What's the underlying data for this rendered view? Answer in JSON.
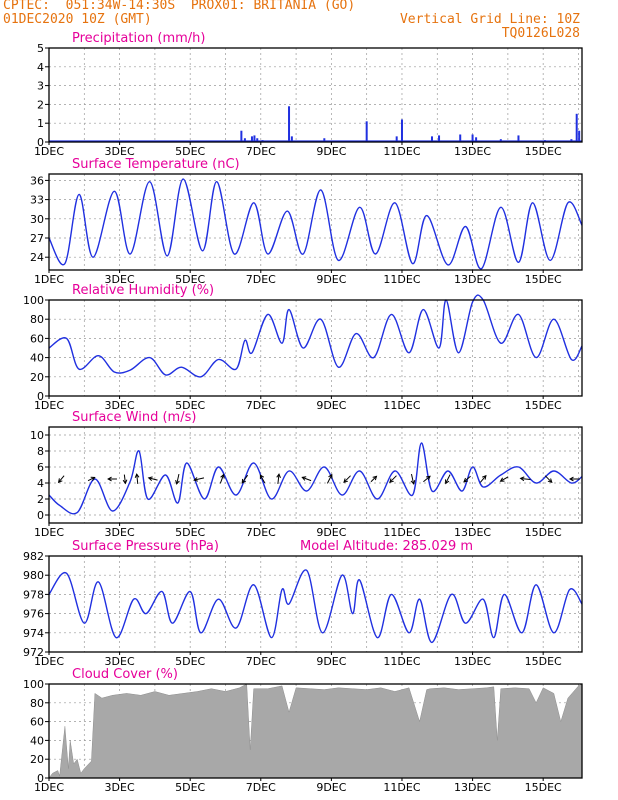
{
  "header": {
    "line1": "CPTEC:  051:34W-14:30S  PROX01: BRITANIA (GO)",
    "line2": "01DEC2020 10Z (GMT)",
    "grid_note": "Vertical Grid Line: 10Z",
    "code": "TQ0126L028"
  },
  "colors": {
    "accent": "#e6730f",
    "title": "#e6009a",
    "series": "#2030e0",
    "cloud": "#a8a8a8",
    "grid": "#9a9a9a"
  },
  "x_ticks": [
    "1DEC",
    "3DEC",
    "5DEC",
    "7DEC",
    "9DEC",
    "11DEC",
    "13DEC",
    "15DEC"
  ],
  "x_tick_days": [
    1,
    3,
    5,
    7,
    9,
    11,
    13,
    15
  ],
  "x_range_days": [
    1,
    16.1
  ],
  "chart_data": [
    {
      "type": "bar",
      "title": "Precipitation (mm/h)",
      "ylim": [
        0,
        5
      ],
      "yticks": [
        0,
        1,
        2,
        3,
        4,
        5
      ],
      "x_days": [
        6.45,
        6.55,
        6.75,
        6.82,
        6.9,
        7.05,
        7.8,
        7.88,
        8.8,
        10.0,
        10.85,
        11.0,
        11.85,
        12.05,
        12.65,
        13.0,
        13.1,
        13.8,
        14.3,
        15.05,
        15.8,
        15.95,
        16.02
      ],
      "values": [
        0.6,
        0.2,
        0.3,
        0.35,
        0.2,
        0.1,
        1.9,
        0.3,
        0.2,
        1.1,
        0.3,
        1.2,
        0.3,
        0.35,
        0.4,
        0.4,
        0.25,
        0.15,
        0.35,
        0.1,
        0.15,
        1.5,
        0.6
      ]
    },
    {
      "type": "line",
      "title": "Surface Temperature (nC)",
      "ylim": [
        22,
        37
      ],
      "yticks": [
        24,
        27,
        30,
        33,
        36
      ],
      "series": [
        {
          "x_days": [
            1.0,
            1.45,
            1.85,
            2.25,
            2.85,
            3.3,
            3.85,
            4.35,
            4.8,
            5.35,
            5.75,
            6.25,
            6.8,
            7.2,
            7.75,
            8.2,
            8.7,
            9.2,
            9.8,
            10.25,
            10.8,
            11.3,
            11.7,
            12.3,
            12.8,
            13.25,
            13.8,
            14.3,
            14.7,
            15.2,
            15.7,
            16.1
          ],
          "values": [
            27,
            23,
            33.8,
            24,
            34.3,
            24.5,
            35.8,
            24.2,
            36.2,
            25,
            35.8,
            24.5,
            32.5,
            24.5,
            31.2,
            24.5,
            34.5,
            23.5,
            31.8,
            24.5,
            32.5,
            23,
            30.5,
            22.8,
            28.8,
            22.2,
            31.8,
            23.2,
            32.5,
            23.5,
            32.5,
            29
          ]
        }
      ]
    },
    {
      "type": "line",
      "title": "Relative Humidity (%)",
      "ylim": [
        0,
        100
      ],
      "yticks": [
        0,
        20,
        40,
        60,
        80,
        100
      ],
      "series": [
        {
          "x_days": [
            1.0,
            1.5,
            1.85,
            2.4,
            2.85,
            3.3,
            3.85,
            4.3,
            4.75,
            5.3,
            5.8,
            6.3,
            6.55,
            6.75,
            7.2,
            7.6,
            7.8,
            8.2,
            8.7,
            9.2,
            9.7,
            10.2,
            10.7,
            11.2,
            11.6,
            12.05,
            12.25,
            12.6,
            13.0,
            13.3,
            13.8,
            14.3,
            14.8,
            15.3,
            15.8,
            16.1
          ],
          "values": [
            50,
            60,
            28,
            42,
            25,
            27,
            40,
            22,
            30,
            20,
            38,
            28,
            58,
            45,
            85,
            55,
            90,
            50,
            80,
            30,
            65,
            40,
            85,
            45,
            90,
            50,
            100,
            45,
            98,
            100,
            55,
            85,
            40,
            80,
            38,
            52
          ]
        }
      ]
    },
    {
      "type": "line",
      "title": "Surface Wind (m/s)",
      "ylim": [
        -1,
        11
      ],
      "yticks": [
        0,
        2,
        4,
        6,
        8,
        10
      ],
      "series": [
        {
          "x_days": [
            1.0,
            1.3,
            1.8,
            2.3,
            2.8,
            3.3,
            3.55,
            3.8,
            4.3,
            4.65,
            4.9,
            5.4,
            5.8,
            6.3,
            6.8,
            7.3,
            7.8,
            8.3,
            8.8,
            9.3,
            9.8,
            10.3,
            10.8,
            11.3,
            11.55,
            11.85,
            12.3,
            12.7,
            13.0,
            13.3,
            13.8,
            14.3,
            14.8,
            15.3,
            15.8,
            16.1
          ],
          "values": [
            2.5,
            1.2,
            0.3,
            4.5,
            0.5,
            4.2,
            8.0,
            2.0,
            5.0,
            1.5,
            6.5,
            2.0,
            6.0,
            2.5,
            6.5,
            2.0,
            5.5,
            3.0,
            6.0,
            2.5,
            5.5,
            2.0,
            5.5,
            2.5,
            9.0,
            3.0,
            5.5,
            3.0,
            6.0,
            3.5,
            5.0,
            6.0,
            4.0,
            5.5,
            4.0,
            4.8
          ]
        }
      ],
      "arrows": [
        {
          "day": 1.35,
          "u": -0.5,
          "v": -0.6
        },
        {
          "day": 2.2,
          "u": 0.6,
          "v": 0.3
        },
        {
          "day": 2.8,
          "u": -0.8,
          "v": 0
        },
        {
          "day": 3.15,
          "u": 0.1,
          "v": -0.8
        },
        {
          "day": 3.5,
          "u": -0.1,
          "v": 0.9
        },
        {
          "day": 3.95,
          "u": -0.8,
          "v": 0.2
        },
        {
          "day": 4.65,
          "u": -0.2,
          "v": -0.9
        },
        {
          "day": 5.25,
          "u": -0.9,
          "v": -0.2
        },
        {
          "day": 5.9,
          "u": 0.3,
          "v": 0.8
        },
        {
          "day": 6.55,
          "u": -0.5,
          "v": -0.7
        },
        {
          "day": 7.05,
          "u": -0.4,
          "v": 0.7
        },
        {
          "day": 7.5,
          "u": 0.1,
          "v": 0.9
        },
        {
          "day": 8.3,
          "u": -0.8,
          "v": 0.3
        },
        {
          "day": 8.95,
          "u": 0.4,
          "v": 0.8
        },
        {
          "day": 9.45,
          "u": -0.6,
          "v": -0.6
        },
        {
          "day": 10.2,
          "u": 0.5,
          "v": 0.5
        },
        {
          "day": 10.75,
          "u": -0.6,
          "v": -0.6
        },
        {
          "day": 11.3,
          "u": 0.2,
          "v": -0.9
        },
        {
          "day": 11.7,
          "u": 0.6,
          "v": 0.5
        },
        {
          "day": 12.3,
          "u": -0.4,
          "v": -0.8
        },
        {
          "day": 12.85,
          "u": -0.6,
          "v": -0.5
        },
        {
          "day": 13.3,
          "u": 0.5,
          "v": 0.6
        },
        {
          "day": 13.9,
          "u": -0.7,
          "v": -0.4
        },
        {
          "day": 14.5,
          "u": -0.9,
          "v": 0.1
        },
        {
          "day": 15.15,
          "u": 0.6,
          "v": -0.6
        },
        {
          "day": 15.9,
          "u": -0.9,
          "v": 0
        }
      ]
    },
    {
      "type": "line",
      "title": "Surface Pressure (hPa)",
      "annotation": "Model Altitude: 285.029 m",
      "ylim": [
        972,
        982
      ],
      "yticks": [
        972,
        974,
        976,
        978,
        980,
        982
      ],
      "series": [
        {
          "x_days": [
            1.0,
            1.5,
            2.0,
            2.4,
            2.9,
            3.4,
            3.75,
            4.2,
            4.5,
            5.0,
            5.3,
            5.8,
            6.3,
            6.8,
            7.3,
            7.6,
            7.8,
            8.3,
            8.75,
            9.3,
            9.6,
            9.8,
            10.3,
            10.7,
            11.2,
            11.5,
            11.85,
            12.4,
            12.8,
            13.3,
            13.6,
            13.9,
            14.4,
            14.8,
            15.3,
            15.75,
            16.1
          ],
          "values": [
            978,
            980.2,
            975,
            979.3,
            973.5,
            977.5,
            976,
            978.3,
            975,
            978.3,
            974,
            977.5,
            974.5,
            979,
            973.5,
            978.5,
            977,
            980.5,
            974,
            980,
            976,
            979.5,
            973.5,
            978,
            974,
            977.5,
            973,
            978,
            975,
            977.5,
            973.5,
            978,
            974,
            979,
            974,
            978.5,
            977
          ]
        }
      ]
    },
    {
      "type": "area",
      "title": "Cloud Cover (%)",
      "ylim": [
        0,
        100
      ],
      "yticks": [
        0,
        20,
        40,
        60,
        80,
        100
      ],
      "x_days": [
        1.0,
        1.1,
        1.25,
        1.3,
        1.45,
        1.55,
        1.6,
        1.7,
        1.8,
        1.9,
        2.0,
        2.2,
        2.3,
        2.5,
        2.8,
        3.2,
        3.6,
        4.0,
        4.4,
        4.8,
        5.2,
        5.6,
        6.0,
        6.4,
        6.6,
        6.7,
        6.8,
        7.2,
        7.6,
        7.8,
        8.0,
        8.4,
        8.8,
        9.2,
        9.6,
        10.0,
        10.4,
        10.8,
        11.2,
        11.5,
        11.7,
        11.8,
        12.2,
        12.6,
        13.0,
        13.4,
        13.6,
        13.7,
        13.8,
        14.2,
        14.6,
        14.8,
        15.0,
        15.3,
        15.5,
        15.7,
        16.0,
        16.1
      ],
      "values": [
        0,
        5,
        8,
        2,
        55,
        10,
        40,
        15,
        20,
        5,
        10,
        18,
        90,
        85,
        88,
        90,
        88,
        92,
        88,
        90,
        92,
        95,
        92,
        96,
        100,
        30,
        95,
        95,
        98,
        70,
        96,
        95,
        94,
        96,
        95,
        94,
        96,
        92,
        96,
        60,
        94,
        95,
        96,
        94,
        95,
        96,
        97,
        40,
        95,
        96,
        95,
        80,
        96,
        90,
        60,
        85,
        98,
        100
      ]
    }
  ]
}
